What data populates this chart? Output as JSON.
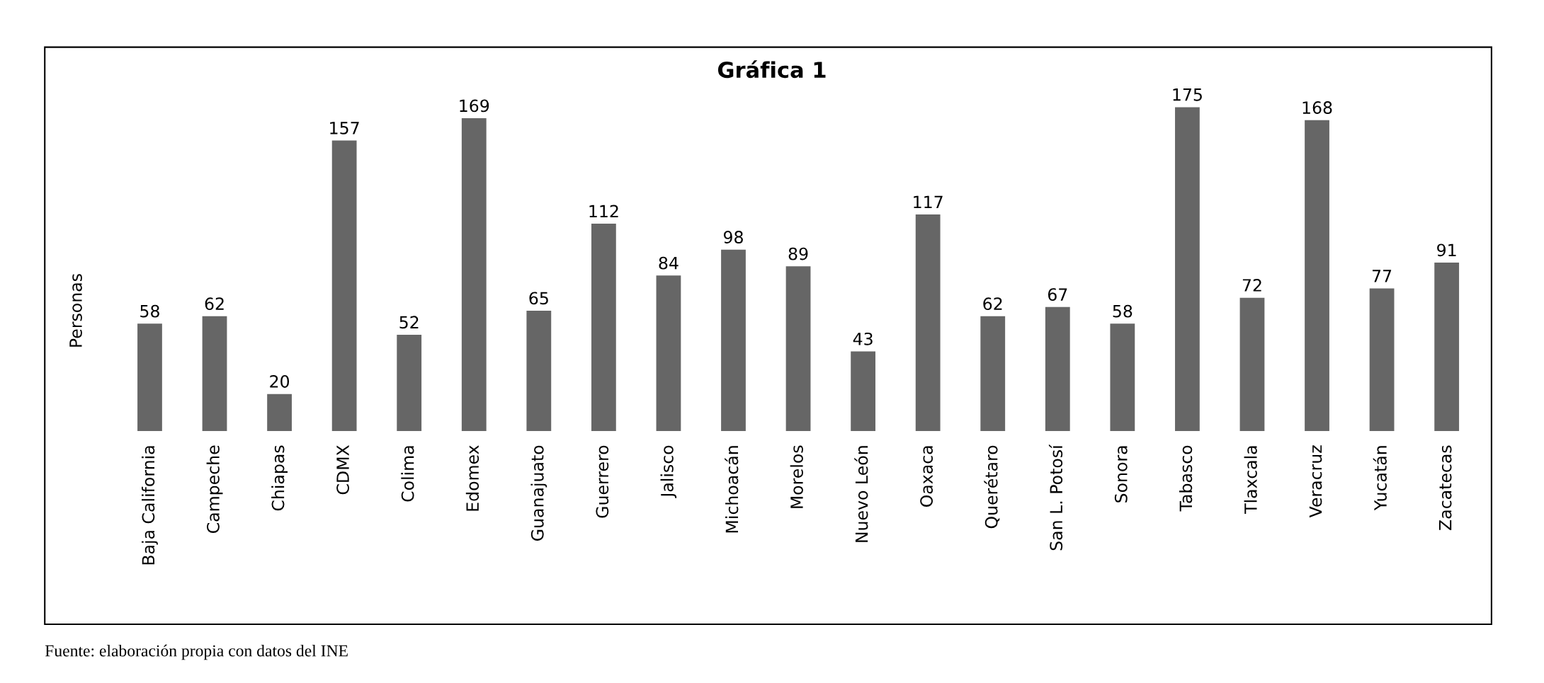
{
  "chart_data": {
    "type": "bar",
    "title": "Gráfica 1",
    "ylabel": "Personas",
    "categories": [
      "Baja California",
      "Campeche",
      "Chiapas",
      "CDMX",
      "Colima",
      "Edomex",
      "Guanajuato",
      "Guerrero",
      "Jalisco",
      "Michoacán",
      "Morelos",
      "Nuevo León",
      "Oaxaca",
      "Querétaro",
      "San L. Potosí",
      "Sonora",
      "Tabasco",
      "Tlaxcala",
      "Veracruz",
      "Yucatán",
      "Zacatecas"
    ],
    "values": [
      58,
      62,
      20,
      157,
      52,
      169,
      65,
      112,
      84,
      98,
      89,
      43,
      117,
      62,
      67,
      58,
      175,
      72,
      168,
      77,
      91
    ],
    "color": "#666666",
    "data_labels": true,
    "grid": false,
    "legend": false,
    "annotations": [
      "Fuente: elaboración propia con datos del INE"
    ]
  }
}
